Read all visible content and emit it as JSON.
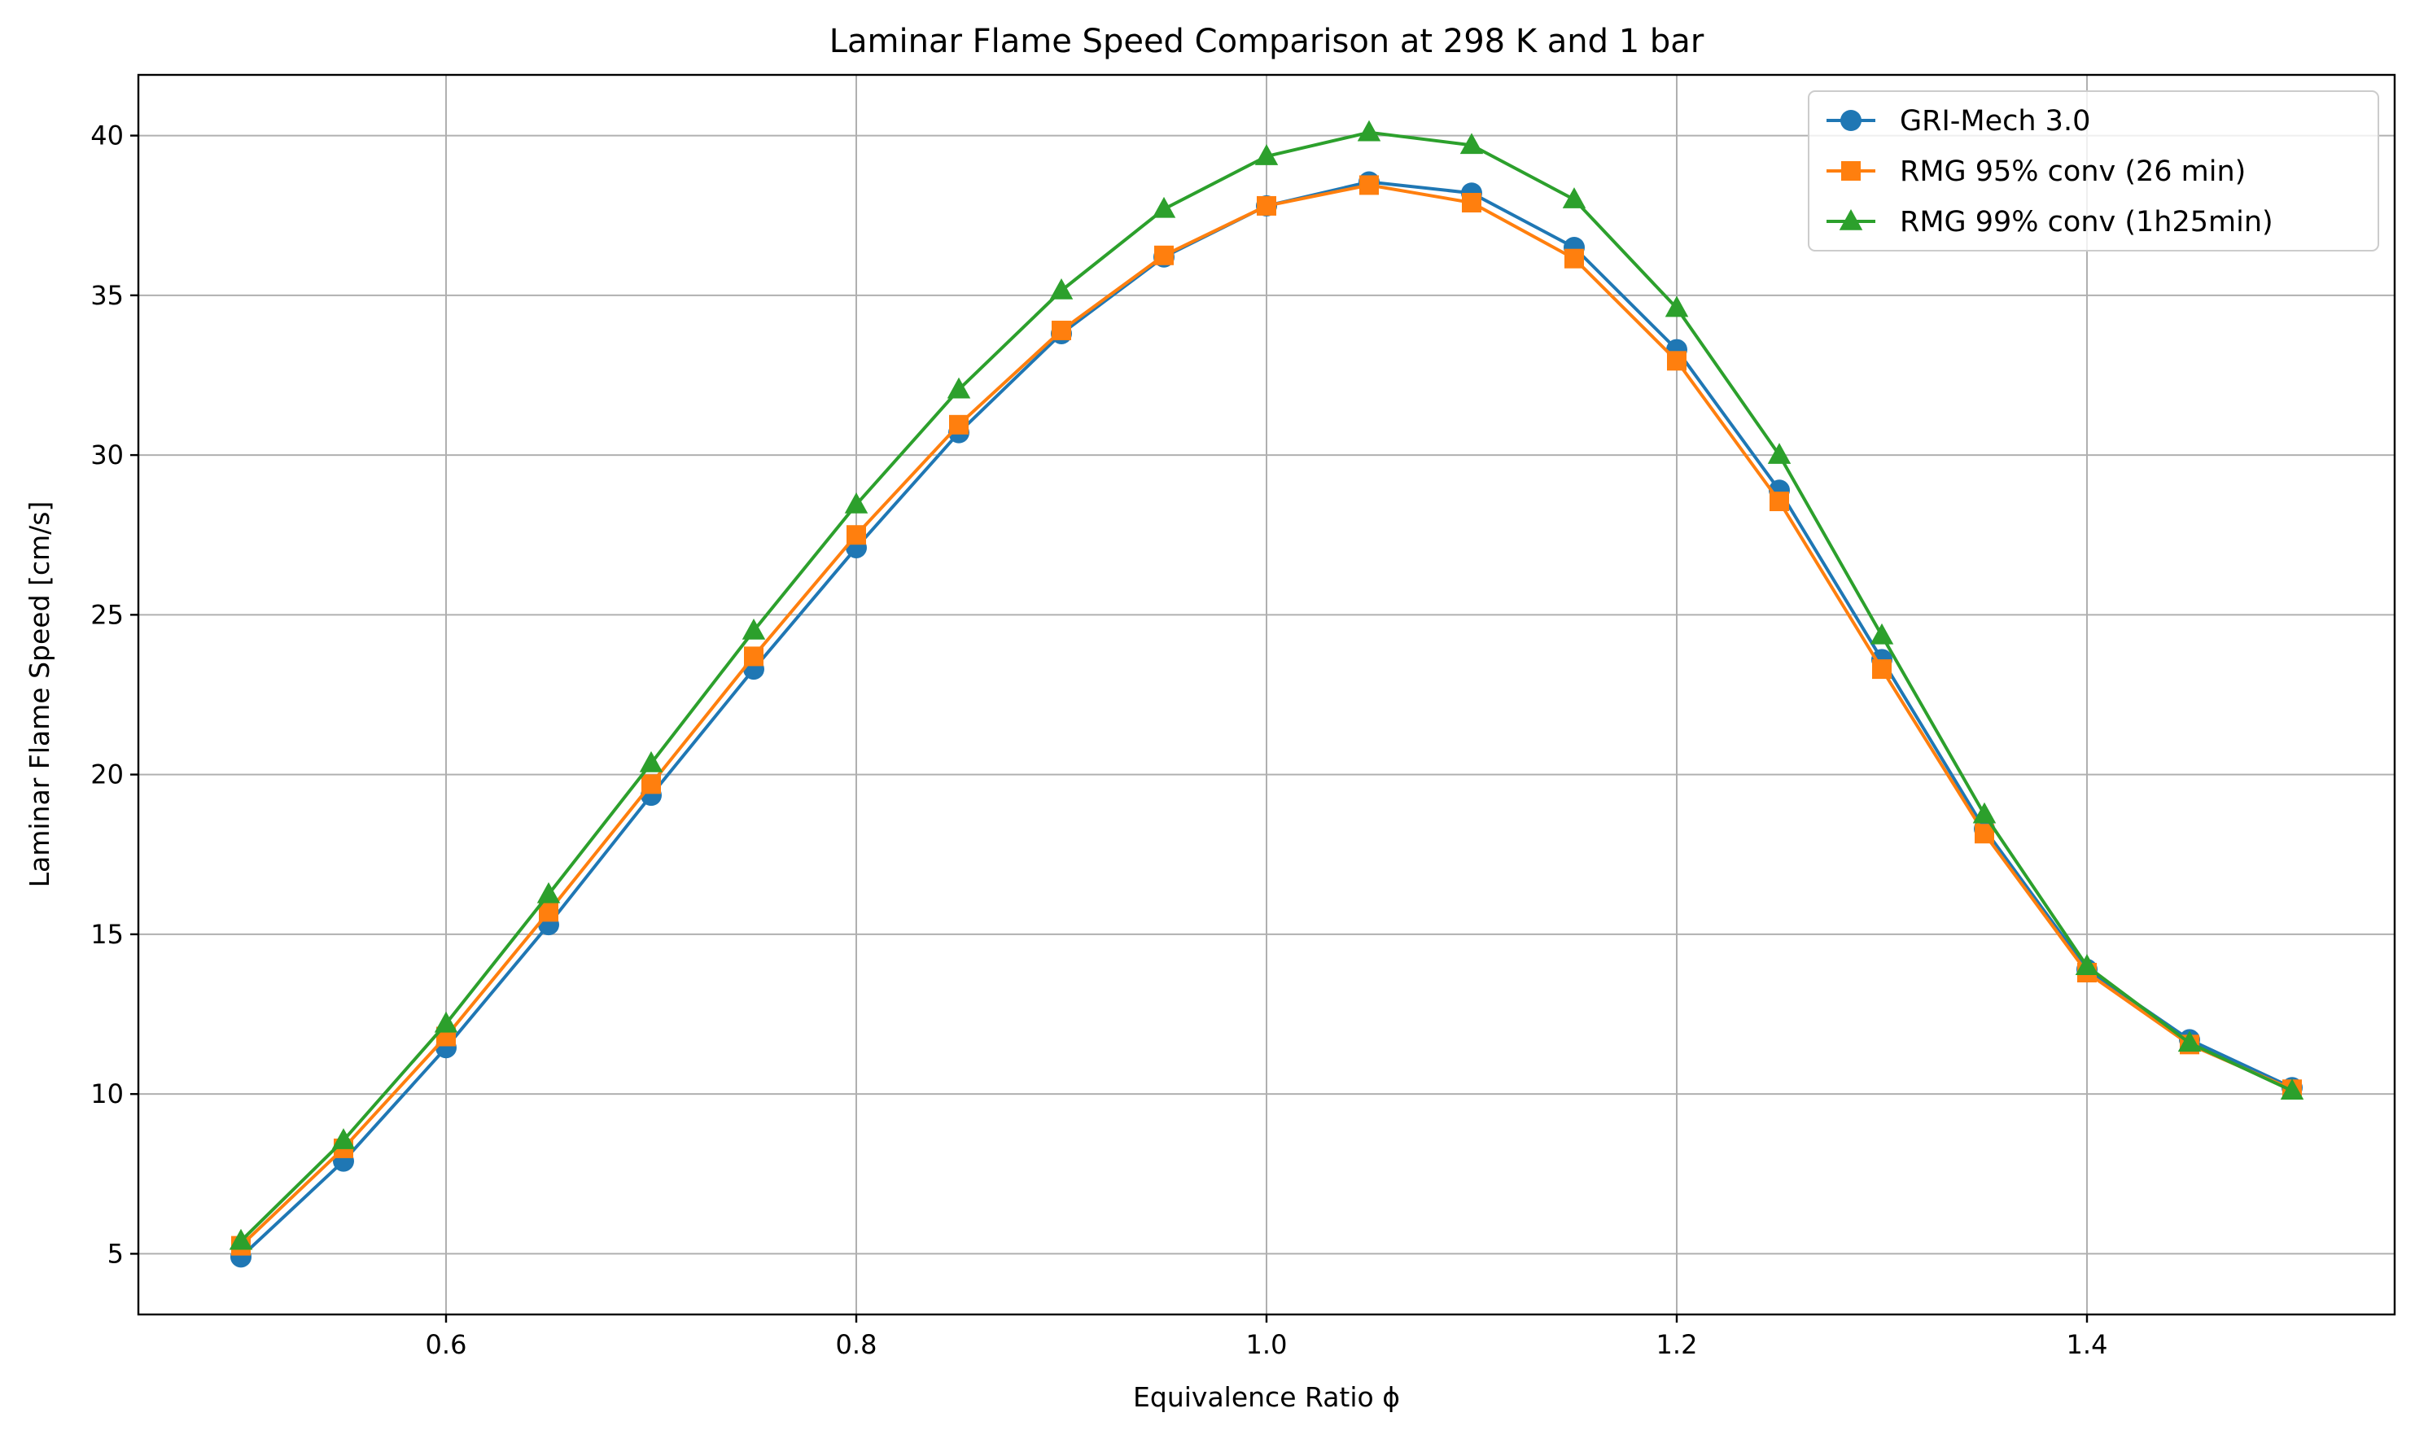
{
  "chart_data": {
    "type": "line",
    "title": "Laminar Flame Speed Comparison at 298 K and 1 bar",
    "xlabel": "Equivalence Ratio ϕ",
    "ylabel": "Laminar Flame Speed [cm/s]",
    "xlim": [
      0.45,
      1.55
    ],
    "ylim": [
      3.1,
      41.9
    ],
    "xticks": [
      0.6,
      0.8,
      1.0,
      1.2,
      1.4
    ],
    "xtick_labels": [
      "0.6",
      "0.8",
      "1.0",
      "1.2",
      "1.4"
    ],
    "yticks": [
      5,
      10,
      15,
      20,
      25,
      30,
      35,
      40
    ],
    "ytick_labels": [
      "5",
      "10",
      "15",
      "20",
      "25",
      "30",
      "35",
      "40"
    ],
    "grid": true,
    "legend_position": "top-right",
    "x": [
      0.5,
      0.55,
      0.6,
      0.65,
      0.7,
      0.75,
      0.8,
      0.85,
      0.9,
      0.95,
      1.0,
      1.05,
      1.1,
      1.15,
      1.2,
      1.25,
      1.3,
      1.35,
      1.4,
      1.45,
      1.5
    ],
    "series": [
      {
        "name": "GRI-Mech 3.0",
        "color": "#1f77b4",
        "marker": "circle",
        "values": [
          4.9,
          7.9,
          11.45,
          15.3,
          19.35,
          23.3,
          27.1,
          30.7,
          33.8,
          36.2,
          37.8,
          38.55,
          38.2,
          36.5,
          33.3,
          28.9,
          23.6,
          18.3,
          13.9,
          11.7,
          10.2
        ]
      },
      {
        "name": "RMG 95% conv (26 min)",
        "color": "#ff7f0e",
        "marker": "square",
        "values": [
          5.25,
          8.3,
          11.8,
          15.7,
          19.7,
          23.7,
          27.5,
          30.95,
          33.9,
          36.25,
          37.8,
          38.45,
          37.9,
          36.15,
          32.95,
          28.55,
          23.3,
          18.15,
          13.8,
          11.55,
          10.15
        ]
      },
      {
        "name": "RMG 99% conv (1h25min)",
        "color": "#2ca02c",
        "marker": "triangle",
        "values": [
          5.4,
          8.55,
          12.2,
          16.25,
          20.35,
          24.5,
          28.45,
          32.05,
          35.15,
          37.7,
          39.35,
          40.1,
          39.7,
          38.0,
          34.6,
          30.0,
          24.35,
          18.75,
          14.0,
          11.6,
          10.1
        ]
      }
    ]
  }
}
